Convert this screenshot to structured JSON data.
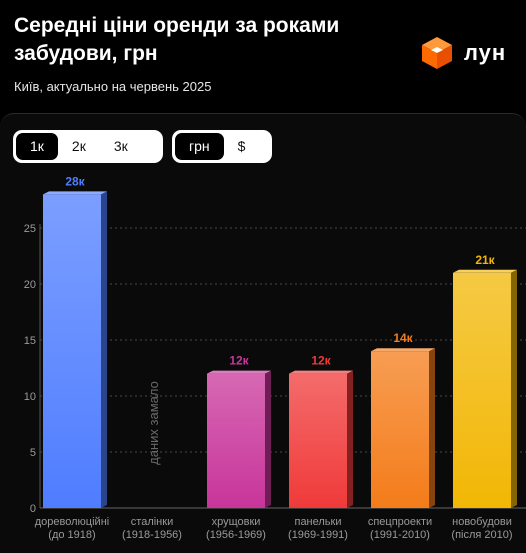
{
  "header": {
    "title": "Середні ціни оренди за роками забудови, грн",
    "subtitle": "Київ, актуально на червень 2025",
    "logo_text": "лун",
    "logo_icon": "orange-cube-icon"
  },
  "controls": {
    "rooms": [
      {
        "label": "1к",
        "active": true
      },
      {
        "label": "2к",
        "active": false
      },
      {
        "label": "3к",
        "active": false
      }
    ],
    "currency": [
      {
        "label": "грн",
        "active": true
      },
      {
        "label": "$",
        "active": false
      }
    ]
  },
  "chart_data": {
    "type": "bar",
    "title": "Середні ціни оренди за роками забудови, грн",
    "xlabel": "",
    "ylabel": "",
    "ylim": [
      0,
      28
    ],
    "yticks": [
      0,
      5,
      10,
      15,
      20,
      25
    ],
    "grid": true,
    "categories": [
      {
        "name": "дореволюційні",
        "years": "(до 1918)"
      },
      {
        "name": "сталінки",
        "years": "(1918-1956)"
      },
      {
        "name": "хрущовки",
        "years": "(1956-1969)"
      },
      {
        "name": "панельки",
        "years": "(1969-1991)"
      },
      {
        "name": "спецпроекти",
        "years": "(1991-2010)"
      },
      {
        "name": "новобудови",
        "years": "(після 2010)"
      }
    ],
    "values": [
      28,
      null,
      12,
      12,
      14,
      21
    ],
    "value_labels": [
      "28к",
      "",
      "12к",
      "12к",
      "14к",
      "21к"
    ],
    "no_data_label": "даних замало",
    "colors": [
      "#4f7dff",
      "#888888",
      "#c8359a",
      "#f03a3a",
      "#f47c1a",
      "#f2b705"
    ]
  }
}
